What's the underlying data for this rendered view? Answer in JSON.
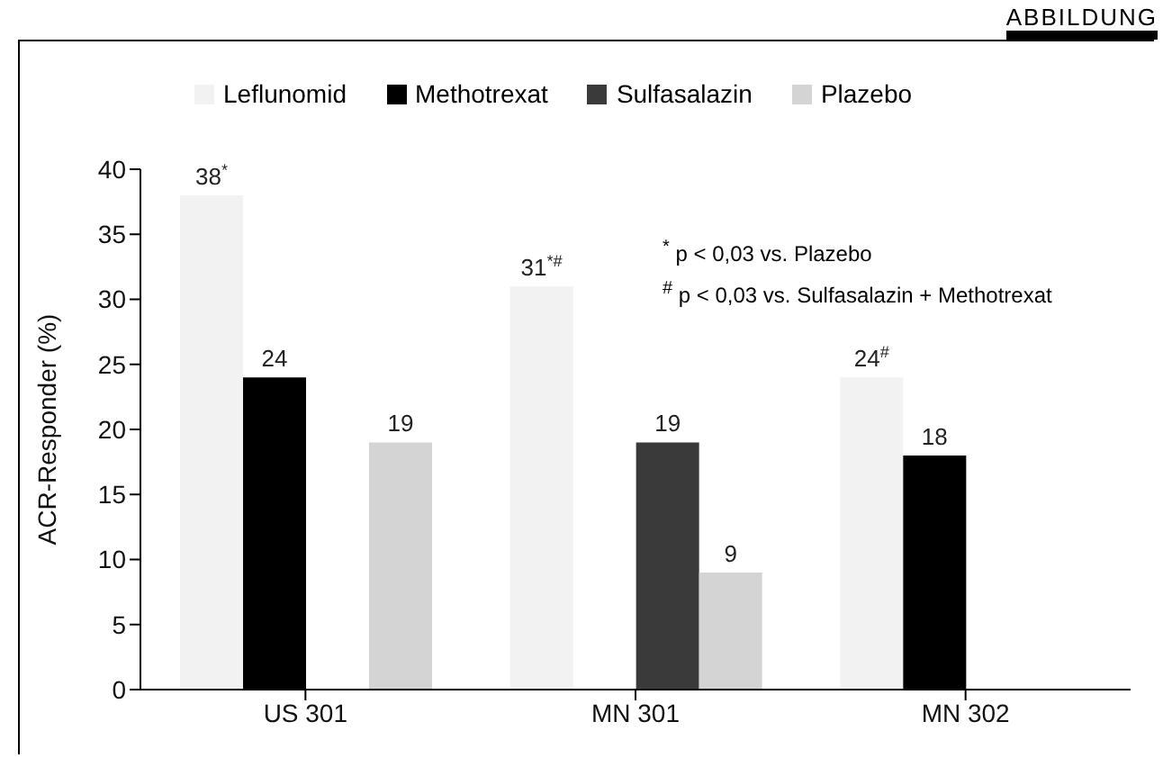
{
  "chart_data": {
    "type": "bar",
    "ylabel": "ACR-Responder (%)",
    "categories": [
      "US 301",
      "MN 301",
      "MN 302"
    ],
    "series": [
      {
        "name": "Leflunomid",
        "color": "#f2f2f2",
        "values": [
          38,
          31,
          24
        ],
        "value_labels": [
          "38$^{*}$",
          "31$^{*#}$",
          "24$^{#}$"
        ]
      },
      {
        "name": "Methotrexat",
        "color": "#000000",
        "values": [
          24,
          null,
          18
        ],
        "value_labels": [
          "24",
          null,
          "18"
        ]
      },
      {
        "name": "Sulfasalazin",
        "color": "#3a3a3a",
        "values": [
          null,
          19,
          null
        ],
        "value_labels": [
          null,
          "19",
          null
        ]
      },
      {
        "name": "Plazebo",
        "color": "#d4d4d4",
        "values": [
          19,
          9,
          null
        ],
        "value_labels": [
          "19",
          "9",
          null
        ]
      }
    ],
    "ylim": [
      0,
      40
    ],
    "yticks": [
      0,
      5,
      10,
      15,
      20,
      25,
      30,
      35,
      40
    ],
    "grid": false,
    "legend": "top",
    "annotations": [
      "ABBILDUNG",
      "$^{*}$ p < 0,03 vs. Plazebo",
      "$^{#}$ p < 0,03 vs. Sulfasalazin + Methotrexat"
    ]
  }
}
